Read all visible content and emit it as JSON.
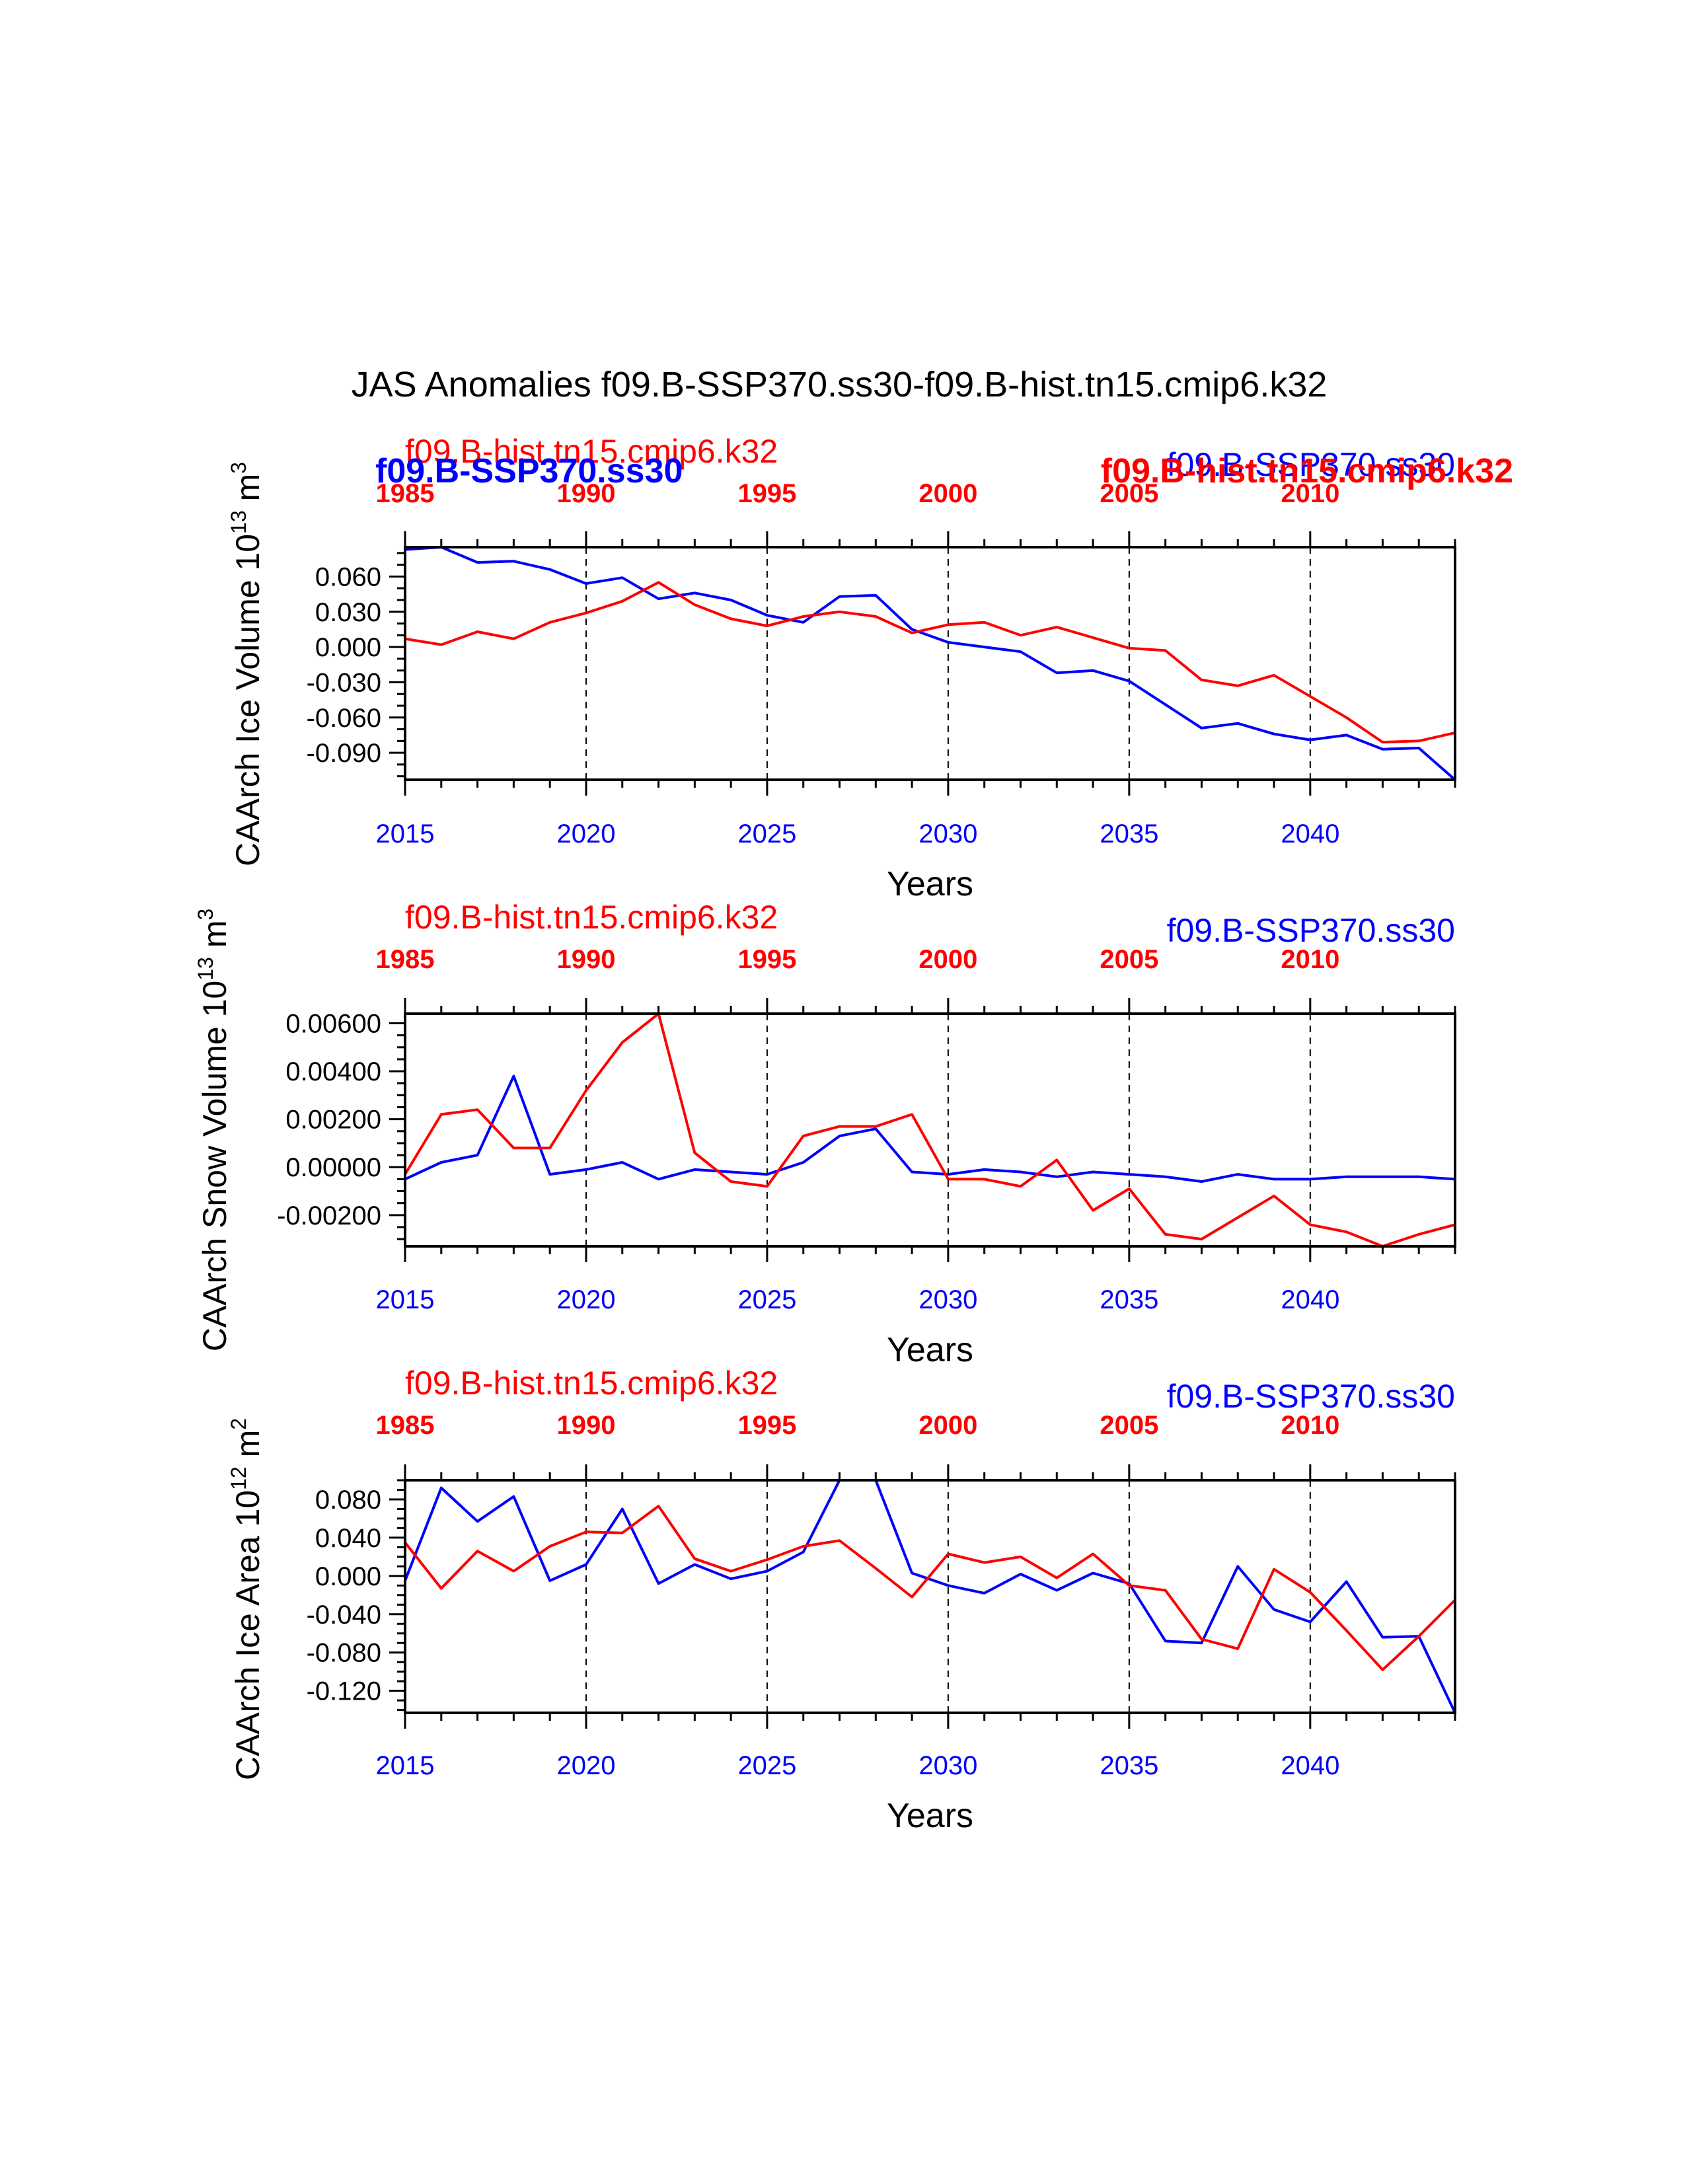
{
  "page_title": "JAS Anomalies f09.B-SSP370.ss30-f09.B-hist.tn15.cmip6.k32",
  "series_labels": {
    "hist": "f09.B-hist.tn15.cmip6.k32",
    "ssp": "f09.B-SSP370.ss30"
  },
  "colors": {
    "hist": "#ff0000",
    "ssp": "#0000ff",
    "axis": "#000000"
  },
  "chart_data": [
    {
      "type": "line",
      "title": "",
      "ylabel_text": "CAArch Ice Volume 10",
      "ylabel_exp": "13",
      "ylabel_unit": "m",
      "ylabel_unit_exp": "3",
      "xlabel": "Years",
      "xlim": [
        2015,
        2044
      ],
      "ylim": [
        -0.113,
        0.085
      ],
      "yticks": [
        -0.09,
        -0.06,
        -0.03,
        0.0,
        0.03,
        0.06
      ],
      "ytick_labels": [
        "-0.090",
        "-0.060",
        "-0.030",
        "0.000",
        "0.030",
        "0.060"
      ],
      "yminor_step": 0.01,
      "xticks_bottom": [
        2015,
        2020,
        2025,
        2030,
        2035,
        2040
      ],
      "xticks_top": [
        1985,
        1990,
        1995,
        2000,
        2005,
        2010
      ],
      "series": [
        {
          "name": "f09.B-SSP370.ss30",
          "color": "#0000ff",
          "x": [
            2015,
            2016,
            2017,
            2018,
            2019,
            2020,
            2021,
            2022,
            2023,
            2024,
            2025,
            2026,
            2027,
            2028,
            2029,
            2030,
            2031,
            2032,
            2033,
            2034,
            2035,
            2036,
            2037,
            2038,
            2039,
            2040,
            2041,
            2042,
            2043,
            2044
          ],
          "values": [
            0.083,
            0.085,
            0.072,
            0.073,
            0.066,
            0.054,
            0.059,
            0.041,
            0.046,
            0.04,
            0.027,
            0.021,
            0.043,
            0.044,
            0.015,
            0.004,
            0.0,
            -0.004,
            -0.022,
            -0.02,
            -0.029,
            -0.049,
            -0.069,
            -0.065,
            -0.074,
            -0.079,
            -0.075,
            -0.087,
            -0.086,
            -0.113
          ]
        },
        {
          "name": "f09.B-hist.tn15.cmip6.k32",
          "color": "#ff0000",
          "x": [
            2015,
            2016,
            2017,
            2018,
            2019,
            2020,
            2021,
            2022,
            2023,
            2024,
            2025,
            2026,
            2027,
            2028,
            2029,
            2030,
            2031,
            2032,
            2033,
            2034,
            2035,
            2036,
            2037,
            2038,
            2039,
            2040,
            2041,
            2042,
            2043,
            2044
          ],
          "values": [
            0.007,
            0.002,
            0.013,
            0.007,
            0.021,
            0.029,
            0.039,
            0.055,
            0.036,
            0.024,
            0.018,
            0.026,
            0.03,
            0.026,
            0.012,
            0.019,
            0.021,
            0.01,
            0.017,
            0.008,
            -0.001,
            -0.003,
            -0.028,
            -0.033,
            -0.024,
            -0.042,
            -0.06,
            -0.081,
            -0.08,
            -0.073
          ]
        }
      ]
    },
    {
      "type": "line",
      "title": "",
      "ylabel_text": "CAArch Snow Volume 10",
      "ylabel_exp": "13",
      "ylabel_unit": "m",
      "ylabel_unit_exp": "3",
      "xlabel": "Years",
      "xlim": [
        2015,
        2044
      ],
      "ylim": [
        -0.0033,
        0.0064
      ],
      "yticks": [
        -0.002,
        0.0,
        0.002,
        0.004,
        0.006
      ],
      "ytick_labels": [
        "-0.00200",
        "0.00000",
        "0.00200",
        "0.00400",
        "0.00600"
      ],
      "yminor_step": 0.0005,
      "xticks_bottom": [
        2015,
        2020,
        2025,
        2030,
        2035,
        2040
      ],
      "xticks_top": [
        1985,
        1990,
        1995,
        2000,
        2005,
        2010
      ],
      "series": [
        {
          "name": "f09.B-SSP370.ss30",
          "color": "#0000ff",
          "x": [
            2015,
            2016,
            2017,
            2018,
            2019,
            2020,
            2021,
            2022,
            2023,
            2024,
            2025,
            2026,
            2027,
            2028,
            2029,
            2030,
            2031,
            2032,
            2033,
            2034,
            2035,
            2036,
            2037,
            2038,
            2039,
            2040,
            2041,
            2042,
            2043,
            2044
          ],
          "values": [
            -0.0005,
            0.0002,
            0.0005,
            0.0038,
            -0.0003,
            -0.0001,
            0.0002,
            -0.0005,
            -0.0001,
            -0.0002,
            -0.0003,
            0.0002,
            0.0013,
            0.0016,
            -0.0002,
            -0.0003,
            -0.0001,
            -0.0002,
            -0.0004,
            -0.0002,
            -0.0003,
            -0.0004,
            -0.0006,
            -0.0003,
            -0.0005,
            -0.0005,
            -0.0004,
            -0.0004,
            -0.0004,
            -0.0005
          ]
        },
        {
          "name": "f09.B-hist.tn15.cmip6.k32",
          "color": "#ff0000",
          "x": [
            2015,
            2016,
            2017,
            2018,
            2019,
            2020,
            2021,
            2022,
            2023,
            2024,
            2025,
            2026,
            2027,
            2028,
            2029,
            2030,
            2031,
            2032,
            2033,
            2034,
            2035,
            2036,
            2037,
            2038,
            2039,
            2040,
            2041,
            2042,
            2043,
            2044
          ],
          "values": [
            -0.0003,
            0.0022,
            0.0024,
            0.0008,
            0.0008,
            0.0032,
            0.0052,
            0.0064,
            0.0006,
            -0.0006,
            -0.0008,
            0.0013,
            0.0017,
            0.0017,
            0.0022,
            -0.0005,
            -0.0005,
            -0.0008,
            0.0003,
            -0.0018,
            -0.0009,
            -0.0028,
            -0.003,
            -0.0021,
            -0.0012,
            -0.0024,
            -0.0027,
            -0.0033,
            -0.0028,
            -0.0024
          ]
        }
      ]
    },
    {
      "type": "line",
      "title": "",
      "ylabel_text": "CAArch Ice Area 10",
      "ylabel_exp": "12",
      "ylabel_unit": "m",
      "ylabel_unit_exp": "2",
      "xlabel": "Years",
      "xlim": [
        2015,
        2044
      ],
      "ylim": [
        -0.143,
        0.1
      ],
      "yticks": [
        -0.12,
        -0.08,
        -0.04,
        0.0,
        0.04,
        0.08
      ],
      "ytick_labels": [
        "-0.120",
        "-0.080",
        "-0.040",
        "0.000",
        "0.040",
        "0.080"
      ],
      "yminor_step": 0.01,
      "xticks_bottom": [
        2015,
        2020,
        2025,
        2030,
        2035,
        2040
      ],
      "xticks_top": [
        1985,
        1990,
        1995,
        2000,
        2005,
        2010
      ],
      "series": [
        {
          "name": "f09.B-SSP370.ss30",
          "color": "#0000ff",
          "x": [
            2015,
            2016,
            2017,
            2018,
            2019,
            2020,
            2021,
            2022,
            2023,
            2024,
            2025,
            2026,
            2027,
            2028,
            2029,
            2030,
            2031,
            2032,
            2033,
            2034,
            2035,
            2036,
            2037,
            2038,
            2039,
            2040,
            2041,
            2042,
            2043,
            2044
          ],
          "values": [
            -0.005,
            0.092,
            0.057,
            0.083,
            -0.005,
            0.012,
            0.07,
            -0.008,
            0.012,
            -0.003,
            0.005,
            0.025,
            0.1,
            0.1,
            0.003,
            -0.01,
            -0.018,
            0.002,
            -0.015,
            0.003,
            -0.008,
            -0.068,
            -0.07,
            0.01,
            -0.035,
            -0.048,
            -0.006,
            -0.064,
            -0.063,
            -0.143
          ]
        },
        {
          "name": "f09.B-hist.tn15.cmip6.k32",
          "color": "#ff0000",
          "x": [
            2015,
            2016,
            2017,
            2018,
            2019,
            2020,
            2021,
            2022,
            2023,
            2024,
            2025,
            2026,
            2027,
            2028,
            2029,
            2030,
            2031,
            2032,
            2033,
            2034,
            2035,
            2036,
            2037,
            2038,
            2039,
            2040,
            2041,
            2042,
            2043,
            2044
          ],
          "values": [
            0.035,
            -0.013,
            0.026,
            0.005,
            0.031,
            0.046,
            0.045,
            0.073,
            0.018,
            0.005,
            0.017,
            0.031,
            0.037,
            0.008,
            -0.022,
            0.023,
            0.014,
            0.02,
            -0.002,
            0.023,
            -0.01,
            -0.015,
            -0.066,
            -0.076,
            0.007,
            -0.017,
            -0.057,
            -0.098,
            -0.063,
            -0.025
          ]
        }
      ]
    }
  ]
}
